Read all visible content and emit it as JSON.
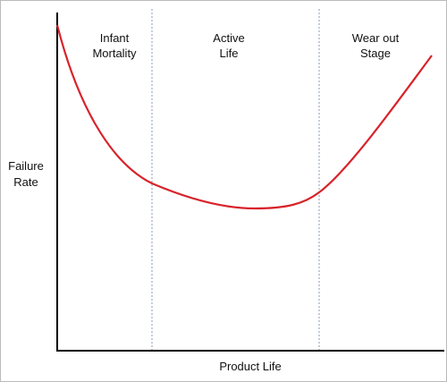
{
  "regions": [
    {
      "lines": [
        "Infant",
        "Mortality"
      ]
    },
    {
      "lines": [
        "Active",
        "Life"
      ]
    },
    {
      "lines": [
        "Wear out",
        "Stage"
      ]
    }
  ],
  "y_axis_label": {
    "lines": [
      "Failure",
      "Rate"
    ]
  },
  "x_axis_label": "Product Life"
}
